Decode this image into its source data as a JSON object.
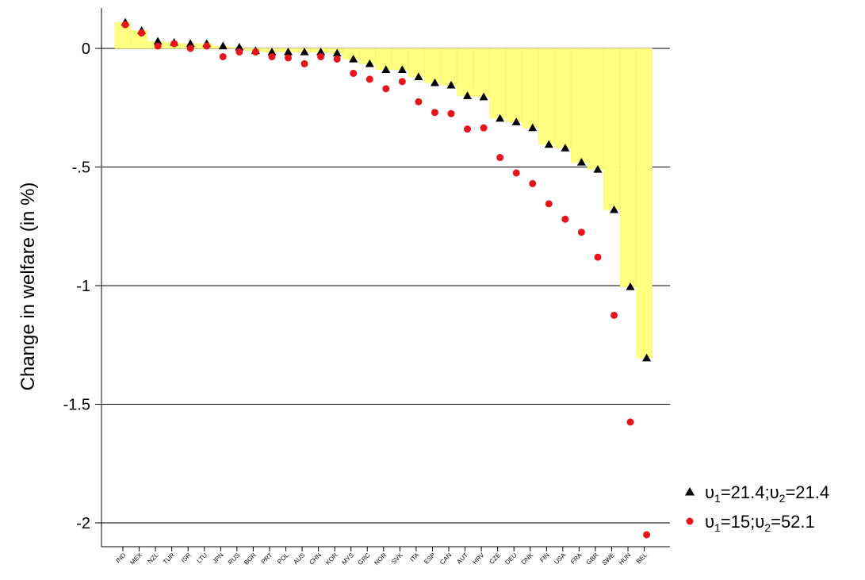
{
  "chart_data": {
    "type": "bar",
    "ylabel": "Change in welfare (in %)",
    "ylim": [
      -2.2,
      0.15
    ],
    "yticks": [
      {
        "value": 0,
        "label": "0"
      },
      {
        "value": -0.5,
        "label": "-.5"
      },
      {
        "value": -1,
        "label": "-1"
      },
      {
        "value": -1.5,
        "label": "-1.5"
      },
      {
        "value": -2,
        "label": "-2"
      }
    ],
    "grid": true,
    "legend_position": "bottom-right",
    "bar_color": "#ffff80",
    "categories": [
      "IND",
      "MEX",
      "NZL",
      "TUR",
      "ISR",
      "LTU",
      "JPN",
      "RUS",
      "BGR",
      "PRT",
      "POL",
      "AUS",
      "CHN",
      "KOR",
      "MYS",
      "GRC",
      "NOR",
      "SVK",
      "ITA",
      "ESP",
      "CAN",
      "AUT",
      "HRV",
      "CZE",
      "DEU",
      "DNK",
      "FIN",
      "USA",
      "FRA",
      "GBR",
      "SWE",
      "HUN",
      "BEL"
    ],
    "series": [
      {
        "legend": {
          "p1": "υ",
          "s1": "1",
          "p2": "=21.4;υ",
          "s2": "2",
          "p3": "=21.4"
        },
        "marker": "triangle",
        "color": "#000000",
        "values": [
          0.11,
          0.075,
          0.03,
          0.025,
          0.02,
          0.02,
          0.01,
          0.005,
          -0.01,
          -0.015,
          -0.015,
          -0.015,
          -0.015,
          -0.02,
          -0.045,
          -0.065,
          -0.09,
          -0.09,
          -0.12,
          -0.145,
          -0.155,
          -0.2,
          -0.205,
          -0.295,
          -0.31,
          -0.335,
          -0.405,
          -0.42,
          -0.48,
          -0.51,
          -0.68,
          -1.005,
          -1.305
        ]
      },
      {
        "legend": {
          "p1": "υ",
          "s1": "1",
          "p2": "=15;υ",
          "s2": "2",
          "p3": "=52.1"
        },
        "marker": "circle",
        "color": "#e8141c",
        "values": [
          0.1,
          0.065,
          0.01,
          0.02,
          0.0,
          0.01,
          -0.035,
          -0.015,
          -0.015,
          -0.035,
          -0.04,
          -0.065,
          -0.035,
          -0.045,
          -0.105,
          -0.13,
          -0.17,
          -0.14,
          -0.225,
          -0.27,
          -0.275,
          -0.34,
          -0.335,
          -0.46,
          -0.525,
          -0.57,
          -0.655,
          -0.72,
          -0.775,
          -0.88,
          -1.125,
          -1.575,
          -2.05
        ]
      }
    ]
  }
}
